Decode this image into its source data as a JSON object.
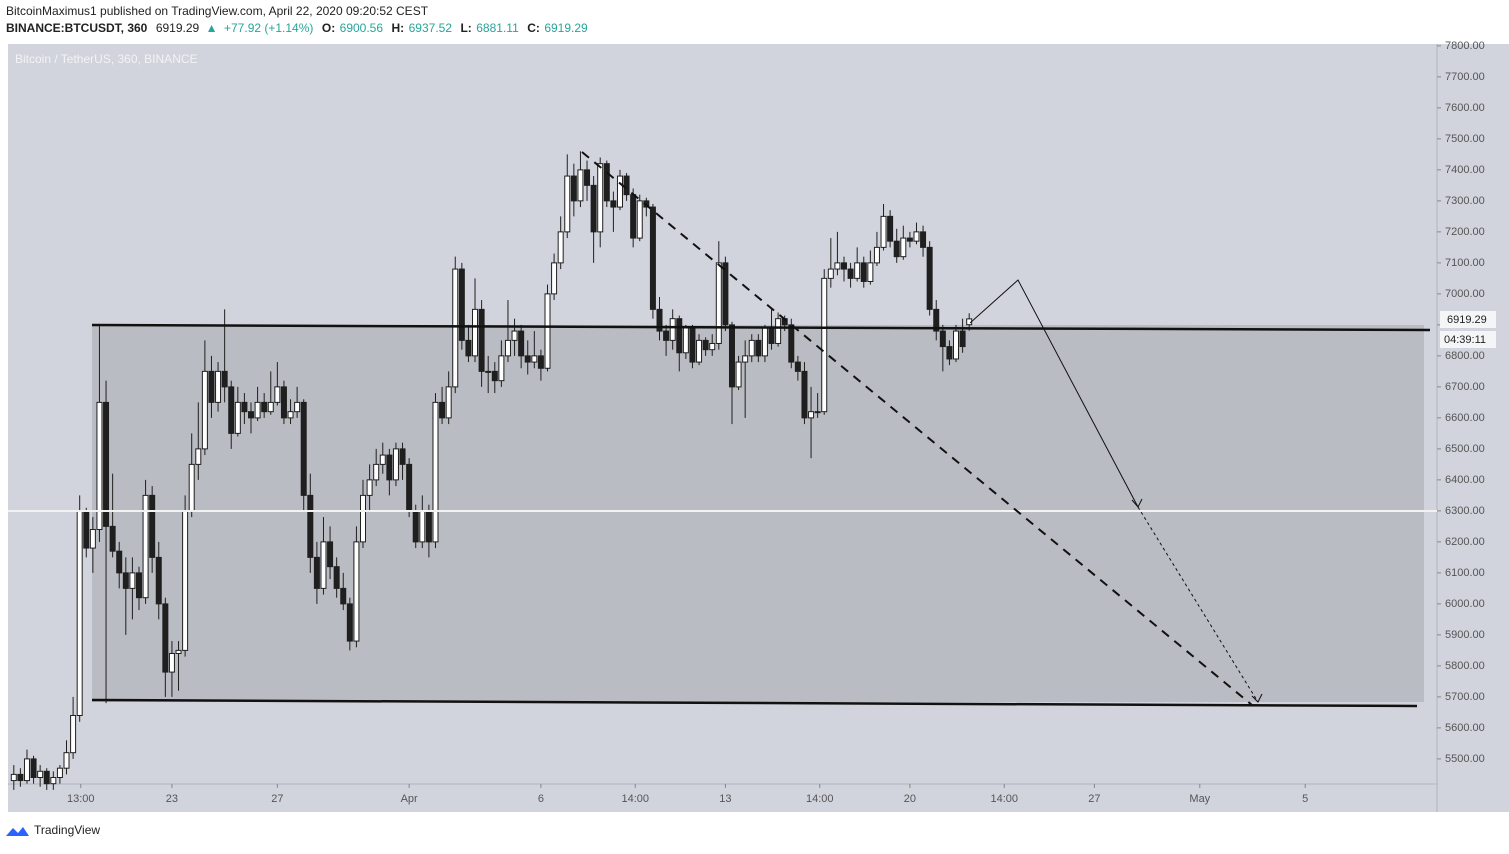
{
  "header": {
    "published": "BitcoinMaximus1 published on TradingView.com, April 22, 2020 09:20:52 CEST",
    "symbol": "BINANCE:BTCUSDT, 360",
    "last": "6919.29",
    "arrow": "▲",
    "change": "+77.92 (+1.14%)",
    "o_label": "O:",
    "o": "6900.56",
    "h_label": "H:",
    "h": "6937.52",
    "l_label": "L:",
    "l": "6881.11",
    "c_label": "C:",
    "c": "6919.29"
  },
  "footer": {
    "brand": "TradingView"
  },
  "chart_data": {
    "type": "candlestick",
    "title": "Bitcoin / TetherUS, 360, BINANCE",
    "price_label": "6919.29",
    "countdown": "04:39:11",
    "up_color": "#ffffff",
    "down_color": "#1f1f1f",
    "outline_color": "#1f1f1f",
    "xlim": [
      -6.22,
      48.0
    ],
    "ylim": [
      5419,
      7806
    ],
    "xticks": [
      {
        "value": -3.46,
        "label": "13:00"
      },
      {
        "value": 0,
        "label": "23"
      },
      {
        "value": 4,
        "label": "27"
      },
      {
        "value": 9,
        "label": "Apr"
      },
      {
        "value": 14,
        "label": "6"
      },
      {
        "value": 17.58,
        "label": "14:00"
      },
      {
        "value": 21,
        "label": "13"
      },
      {
        "value": 24.58,
        "label": "14:00"
      },
      {
        "value": 28,
        "label": "20"
      },
      {
        "value": 31.58,
        "label": "14:00"
      },
      {
        "value": 35,
        "label": "27"
      },
      {
        "value": 39,
        "label": "May"
      },
      {
        "value": 43,
        "label": "5"
      }
    ],
    "yticks": [
      {
        "value": 5500,
        "label": "5500.00"
      },
      {
        "value": 5600,
        "label": "5600.00"
      },
      {
        "value": 5700,
        "label": "5700.00"
      },
      {
        "value": 5800,
        "label": "5800.00"
      },
      {
        "value": 5900,
        "label": "5900.00"
      },
      {
        "value": 6000,
        "label": "6000.00"
      },
      {
        "value": 6100,
        "label": "6100.00"
      },
      {
        "value": 6200,
        "label": "6200.00"
      },
      {
        "value": 6300,
        "label": "6300.00"
      },
      {
        "value": 6400,
        "label": "6400.00"
      },
      {
        "value": 6500,
        "label": "6500.00"
      },
      {
        "value": 6600,
        "label": "6600.00"
      },
      {
        "value": 6700,
        "label": "6700.00"
      },
      {
        "value": 6800,
        "label": "6800.00"
      },
      {
        "value": 6900,
        "label": "6900.00"
      },
      {
        "value": 7000,
        "label": "7000.00"
      },
      {
        "value": 7100,
        "label": "7100.00"
      },
      {
        "value": 7200,
        "label": "7200.00"
      },
      {
        "value": 7300,
        "label": "7300.00"
      },
      {
        "value": 7400,
        "label": "7400.00"
      },
      {
        "value": 7500,
        "label": "7500.00"
      },
      {
        "value": 7600,
        "label": "7600.00"
      },
      {
        "value": 7700,
        "label": "7700.00"
      },
      {
        "value": 7800,
        "label": "7800.00"
      }
    ],
    "x": [
      -6,
      -5.75,
      -5.5,
      -5.25,
      -5,
      -4.75,
      -4.5,
      -4.25,
      -4,
      -3.75,
      -3.5,
      -3.25,
      -3,
      -2.75,
      -2.5,
      -2.25,
      -2,
      -1.75,
      -1.5,
      -1.25,
      -1,
      -0.75,
      -0.5,
      -0.25,
      0,
      0.25,
      0.5,
      0.75,
      1,
      1.25,
      1.5,
      1.75,
      2,
      2.25,
      2.5,
      2.75,
      3,
      3.25,
      3.5,
      3.75,
      4,
      4.25,
      4.5,
      4.75,
      5,
      5.25,
      5.5,
      5.75,
      6,
      6.25,
      6.5,
      6.75,
      7,
      7.25,
      7.5,
      7.75,
      8,
      8.25,
      8.5,
      8.75,
      9,
      9.25,
      9.5,
      9.75,
      10,
      10.25,
      10.5,
      10.75,
      11,
      11.25,
      11.5,
      11.75,
      12,
      12.25,
      12.5,
      12.75,
      13,
      13.25,
      13.5,
      13.75,
      14,
      14.25,
      14.5,
      14.75,
      15,
      15.25,
      15.5,
      15.75,
      16,
      16.25,
      16.5,
      16.75,
      17,
      17.25,
      17.5,
      17.75,
      18,
      18.25,
      18.5,
      18.75,
      19,
      19.25,
      19.5,
      19.75,
      20,
      20.25,
      20.5,
      20.75,
      21,
      21.25,
      21.5,
      21.75,
      22,
      22.25,
      22.5,
      22.75,
      23,
      23.25,
      23.5,
      23.75,
      24,
      24.25,
      24.5,
      24.75,
      25,
      25.25,
      25.5,
      25.75,
      26,
      26.25,
      26.5,
      26.75,
      27,
      27.25,
      27.5,
      27.75,
      28,
      28.25,
      28.5,
      28.75,
      29,
      29.25,
      29.5,
      29.75,
      30,
      30.25
    ],
    "ohlc": [
      [
        5430,
        5480,
        5400,
        5450
      ],
      [
        5450,
        5470,
        5410,
        5430
      ],
      [
        5430,
        5530,
        5420,
        5500
      ],
      [
        5500,
        5510,
        5420,
        5440
      ],
      [
        5440,
        5480,
        5410,
        5460
      ],
      [
        5460,
        5470,
        5400,
        5420
      ],
      [
        5420,
        5460,
        5400,
        5440
      ],
      [
        5440,
        5480,
        5420,
        5470
      ],
      [
        5470,
        5560,
        5450,
        5520
      ],
      [
        5520,
        5700,
        5500,
        5640
      ],
      [
        5640,
        6350,
        5620,
        6300
      ],
      [
        6300,
        6310,
        6150,
        6180
      ],
      [
        6180,
        6280,
        6100,
        6240
      ],
      [
        6240,
        6900,
        6200,
        6650
      ],
      [
        6650,
        6720,
        5680,
        6250
      ],
      [
        6250,
        6420,
        6150,
        6170
      ],
      [
        6170,
        6200,
        6050,
        6100
      ],
      [
        6100,
        6150,
        5900,
        6050
      ],
      [
        6050,
        6150,
        5950,
        6100
      ],
      [
        6100,
        6120,
        5980,
        6020
      ],
      [
        6020,
        6400,
        6000,
        6350
      ],
      [
        6350,
        6380,
        6100,
        6150
      ],
      [
        6150,
        6200,
        5950,
        6000
      ],
      [
        6000,
        6020,
        5700,
        5780
      ],
      [
        5780,
        5880,
        5700,
        5840
      ],
      [
        5840,
        5880,
        5720,
        5850
      ],
      [
        5850,
        6350,
        5830,
        6300
      ],
      [
        6300,
        6550,
        6280,
        6450
      ],
      [
        6450,
        6650,
        6400,
        6500
      ],
      [
        6500,
        6850,
        6480,
        6750
      ],
      [
        6750,
        6800,
        6600,
        6650
      ],
      [
        6650,
        6780,
        6620,
        6750
      ],
      [
        6750,
        6950,
        6650,
        6700
      ],
      [
        6700,
        6720,
        6500,
        6550
      ],
      [
        6550,
        6700,
        6540,
        6650
      ],
      [
        6650,
        6680,
        6580,
        6620
      ],
      [
        6620,
        6650,
        6550,
        6600
      ],
      [
        6600,
        6700,
        6590,
        6650
      ],
      [
        6650,
        6680,
        6600,
        6620
      ],
      [
        6620,
        6750,
        6610,
        6650
      ],
      [
        6650,
        6780,
        6640,
        6700
      ],
      [
        6700,
        6720,
        6580,
        6600
      ],
      [
        6600,
        6660,
        6580,
        6620
      ],
      [
        6620,
        6700,
        6600,
        6650
      ],
      [
        6650,
        6660,
        6300,
        6350
      ],
      [
        6350,
        6420,
        6100,
        6150
      ],
      [
        6150,
        6200,
        6000,
        6050
      ],
      [
        6050,
        6280,
        6030,
        6200
      ],
      [
        6200,
        6250,
        6080,
        6120
      ],
      [
        6120,
        6150,
        6020,
        6050
      ],
      [
        6050,
        6100,
        5980,
        6000
      ],
      [
        6000,
        6020,
        5850,
        5880
      ],
      [
        5880,
        6250,
        5860,
        6200
      ],
      [
        6200,
        6400,
        6180,
        6350
      ],
      [
        6350,
        6450,
        6300,
        6400
      ],
      [
        6400,
        6500,
        6380,
        6450
      ],
      [
        6450,
        6520,
        6420,
        6480
      ],
      [
        6480,
        6500,
        6350,
        6400
      ],
      [
        6400,
        6520,
        6380,
        6500
      ],
      [
        6500,
        6520,
        6400,
        6450
      ],
      [
        6450,
        6470,
        6280,
        6300
      ],
      [
        6300,
        6320,
        6180,
        6200
      ],
      [
        6200,
        6350,
        6180,
        6300
      ],
      [
        6300,
        6320,
        6150,
        6200
      ],
      [
        6200,
        6680,
        6180,
        6650
      ],
      [
        6650,
        6700,
        6580,
        6600
      ],
      [
        6600,
        6750,
        6580,
        6700
      ],
      [
        6700,
        7120,
        6680,
        7080
      ],
      [
        7080,
        7100,
        6820,
        6850
      ],
      [
        6850,
        6900,
        6780,
        6800
      ],
      [
        6800,
        7050,
        6780,
        6950
      ],
      [
        6950,
        6980,
        6700,
        6750
      ],
      [
        6750,
        6800,
        6680,
        6750
      ],
      [
        6750,
        6780,
        6680,
        6720
      ],
      [
        6720,
        6850,
        6700,
        6800
      ],
      [
        6800,
        6980,
        6780,
        6850
      ],
      [
        6850,
        6920,
        6800,
        6880
      ],
      [
        6880,
        6900,
        6760,
        6800
      ],
      [
        6800,
        6850,
        6740,
        6780
      ],
      [
        6780,
        6880,
        6760,
        6800
      ],
      [
        6800,
        6820,
        6720,
        6760
      ],
      [
        6760,
        7030,
        6750,
        7000
      ],
      [
        7000,
        7130,
        6980,
        7100
      ],
      [
        7100,
        7250,
        7080,
        7200
      ],
      [
        7200,
        7450,
        7180,
        7380
      ],
      [
        7380,
        7420,
        7250,
        7300
      ],
      [
        7300,
        7460,
        7280,
        7400
      ],
      [
        7400,
        7430,
        7300,
        7350
      ],
      [
        7350,
        7380,
        7100,
        7200
      ],
      [
        7200,
        7440,
        7150,
        7420
      ],
      [
        7420,
        7430,
        7280,
        7300
      ],
      [
        7300,
        7330,
        7200,
        7280
      ],
      [
        7280,
        7400,
        7270,
        7380
      ],
      [
        7380,
        7390,
        7300,
        7320
      ],
      [
        7320,
        7340,
        7150,
        7180
      ],
      [
        7180,
        7320,
        7170,
        7300
      ],
      [
        7300,
        7310,
        7250,
        7280
      ],
      [
        7280,
        7290,
        6920,
        6950
      ],
      [
        6950,
        6990,
        6850,
        6880
      ],
      [
        6880,
        6900,
        6800,
        6850
      ],
      [
        6850,
        6950,
        6820,
        6920
      ],
      [
        6920,
        6930,
        6750,
        6810
      ],
      [
        6810,
        6900,
        6790,
        6890
      ],
      [
        6890,
        6900,
        6760,
        6780
      ],
      [
        6780,
        6870,
        6770,
        6850
      ],
      [
        6850,
        6860,
        6800,
        6820
      ],
      [
        6820,
        6870,
        6800,
        6840
      ],
      [
        6840,
        7170,
        6820,
        7100
      ],
      [
        7100,
        7120,
        6880,
        6900
      ],
      [
        6900,
        6910,
        6580,
        6700
      ],
      [
        6700,
        6800,
        6690,
        6780
      ],
      [
        6780,
        6850,
        6600,
        6800
      ],
      [
        6800,
        6870,
        6780,
        6850
      ],
      [
        6850,
        6870,
        6780,
        6800
      ],
      [
        6800,
        6900,
        6780,
        6890
      ],
      [
        6890,
        6950,
        6820,
        6840
      ],
      [
        6840,
        6940,
        6830,
        6920
      ],
      [
        6920,
        6930,
        6880,
        6900
      ],
      [
        6900,
        6920,
        6760,
        6780
      ],
      [
        6780,
        6800,
        6720,
        6750
      ],
      [
        6750,
        6780,
        6580,
        6600
      ],
      [
        6600,
        6700,
        6470,
        6620
      ],
      [
        6620,
        6680,
        6600,
        6620
      ],
      [
        6620,
        7080,
        6610,
        7050
      ],
      [
        7050,
        7180,
        7020,
        7080
      ],
      [
        7080,
        7200,
        7060,
        7100
      ],
      [
        7100,
        7120,
        7040,
        7080
      ],
      [
        7080,
        7100,
        7020,
        7050
      ],
      [
        7050,
        7150,
        7040,
        7100
      ],
      [
        7100,
        7120,
        7020,
        7040
      ],
      [
        7040,
        7140,
        7030,
        7100
      ],
      [
        7100,
        7200,
        7090,
        7150
      ],
      [
        7150,
        7290,
        7140,
        7250
      ],
      [
        7250,
        7270,
        7150,
        7170
      ],
      [
        7170,
        7210,
        7100,
        7120
      ],
      [
        7120,
        7220,
        7110,
        7180
      ],
      [
        7180,
        7200,
        7150,
        7170
      ],
      [
        7170,
        7230,
        7160,
        7200
      ],
      [
        7200,
        7220,
        7120,
        7150
      ],
      [
        7150,
        7170,
        6930,
        6950
      ],
      [
        6950,
        6980,
        6850,
        6880
      ],
      [
        6880,
        6900,
        6750,
        6830
      ],
      [
        6830,
        6850,
        6770,
        6790
      ],
      [
        6790,
        6900,
        6780,
        6880
      ],
      [
        6880,
        6920,
        6810,
        6830
      ],
      [
        6900.56,
        6937.52,
        6881.11,
        6919.29
      ]
    ]
  }
}
